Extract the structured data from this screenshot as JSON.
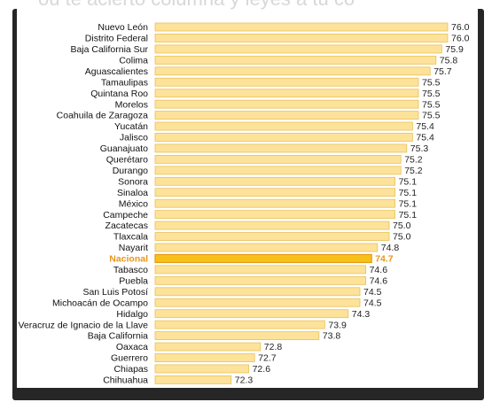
{
  "header_fragment": "ou te acierto columna y leyes a tu co",
  "chart_data": {
    "type": "bar",
    "orientation": "horizontal",
    "categories": [
      "Nuevo León",
      "Distrito Federal",
      "Baja California Sur",
      "Colima",
      "Aguascalientes",
      "Tamaulipas",
      "Quintana Roo",
      "Morelos",
      "Coahuila de Zaragoza",
      "Yucatán",
      "Jalisco",
      "Guanajuato",
      "Querétaro",
      "Durango",
      "Sonora",
      "Sinaloa",
      "México",
      "Campeche",
      "Zacatecas",
      "Tlaxcala",
      "Nayarit",
      "Nacional",
      "Tabasco",
      "Puebla",
      "San Luis Potosí",
      "Michoacán de Ocampo",
      "Hidalgo",
      "Veracruz de Ignacio de la Llave",
      "Baja California",
      "Oaxaca",
      "Guerrero",
      "Chiapas",
      "Chihuahua"
    ],
    "values": [
      76.0,
      76.0,
      75.9,
      75.8,
      75.7,
      75.5,
      75.5,
      75.5,
      75.5,
      75.4,
      75.4,
      75.3,
      75.2,
      75.2,
      75.1,
      75.1,
      75.1,
      75.1,
      75.0,
      75.0,
      74.8,
      74.7,
      74.6,
      74.6,
      74.5,
      74.5,
      74.3,
      73.9,
      73.8,
      72.8,
      72.7,
      72.6,
      72.3
    ],
    "value_labels": [
      "76.0",
      "76.0",
      "75.9",
      "75.8",
      "75.7",
      "75.5",
      "75.5",
      "75.5",
      "75.5",
      "75.4",
      "75.4",
      "75.3",
      "75.2",
      "75.2",
      "75.1",
      "75.1",
      "75.1",
      "75.1",
      "75.0",
      "75.0",
      "74.8",
      "74.7",
      "74.6",
      "74.6",
      "74.5",
      "74.5",
      "74.3",
      "73.9",
      "73.8",
      "72.8",
      "72.7",
      "72.6",
      "72.3"
    ],
    "highlight": "Nacional",
    "xlim": [
      71.0,
      76.0
    ],
    "grid": false,
    "colors": {
      "bar_fill": "#fde29a",
      "bar_stroke": "#e9c15a",
      "highlight_fill": "#f6c21a",
      "highlight_stroke": "#e59a12",
      "highlight_text": "#e8961a"
    }
  }
}
